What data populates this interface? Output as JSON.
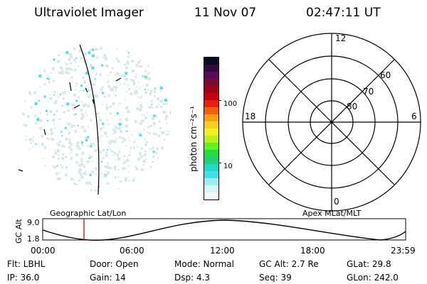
{
  "header": {
    "title": "Ultraviolet Imager",
    "date": "11 Nov 07",
    "time": "02:47:11 UT"
  },
  "colorbar": {
    "unit_label": "photon cm⁻²s⁻¹",
    "ticks": [
      "100",
      "10"
    ],
    "colors": [
      "#0a0a24",
      "#300a40",
      "#5a0a5a",
      "#7a0a30",
      "#a00018",
      "#c80010",
      "#e8200a",
      "#f0600a",
      "#f8a010",
      "#f8d020",
      "#f0f020",
      "#b8f020",
      "#60f020",
      "#20e040",
      "#20d080",
      "#20d8c8",
      "#40e0e8",
      "#a0ecf0",
      "#d8f4f4",
      "#f2f8f8"
    ]
  },
  "polar_grid": {
    "mlt_labels": {
      "top": "12",
      "left": "18",
      "right": "6",
      "bottom": "0"
    },
    "lat_labels": [
      "60",
      "70",
      "80"
    ]
  },
  "altitude_plot": {
    "left_title": "Geographic Lat/Lon",
    "right_title": "Apex MLat/MLT",
    "y_axis_label": "GC Alt",
    "y_ticks": [
      "9.0",
      "1.8"
    ],
    "x_ticks": [
      "00:00",
      "06:00",
      "12:00",
      "18:00",
      "23:59"
    ]
  },
  "status": {
    "filter": "Flt: LBHL",
    "door": "Door: Open",
    "mode": "Mode: Normal",
    "gc_alt": "GC Alt: 2.7 Re",
    "glat": "GLat:  29.8",
    "ip": "IP: 36.0",
    "gain": "Gain: 14",
    "dsp": "Dsp:     4.3",
    "seq": "Seq: 39",
    "glon": "GLon: 242.0"
  },
  "colors": {
    "speckle_light": "#d8e6e6",
    "speckle_cyan": "#4fe0e0",
    "marker_red": "#c00000"
  }
}
